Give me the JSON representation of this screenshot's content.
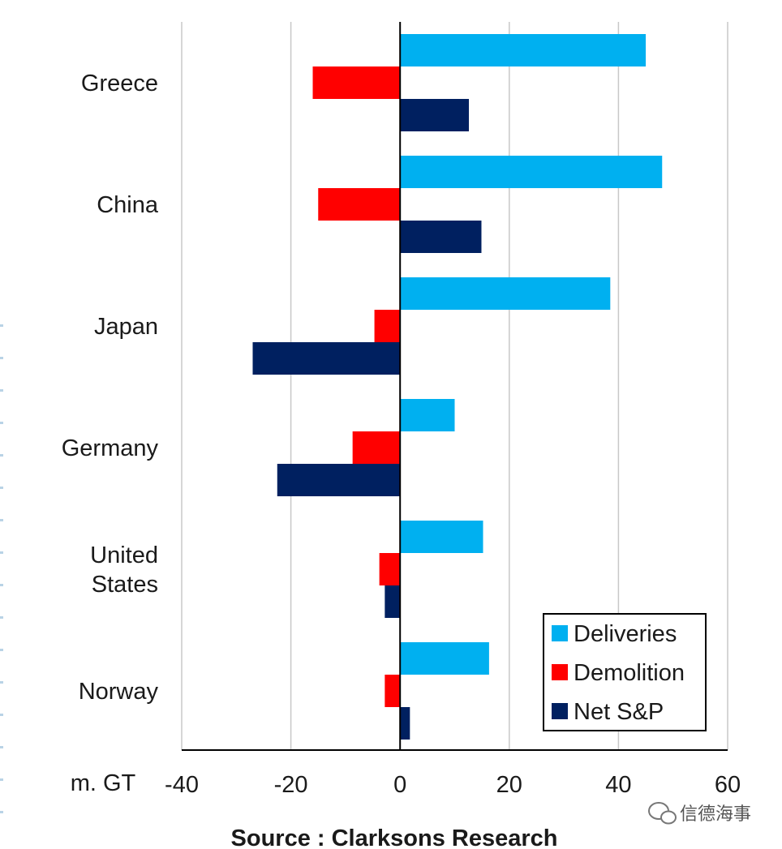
{
  "chart_data": {
    "type": "bar",
    "orientation": "horizontal",
    "categories": [
      "Greece",
      "China",
      "Japan",
      "Germany",
      "United States",
      "Norway"
    ],
    "category_lines": [
      [
        "Greece"
      ],
      [
        "China"
      ],
      [
        "Japan"
      ],
      [
        "Germany"
      ],
      [
        "United",
        "States"
      ],
      [
        "Norway"
      ]
    ],
    "series": [
      {
        "name": "Deliveries",
        "color": "#00b0f0",
        "values": [
          45,
          48,
          38.5,
          10,
          15.2,
          16.3
        ]
      },
      {
        "name": "Demolition",
        "color": "#ff0000",
        "values": [
          -16,
          -15,
          -4.7,
          -8.7,
          -3.8,
          -2.8
        ]
      },
      {
        "name": "Net S&P",
        "color": "#002060",
        "values": [
          12.6,
          14.9,
          -27,
          -22.5,
          -2.8,
          1.8
        ]
      }
    ],
    "xlim": [
      -40,
      60
    ],
    "xticks": [
      "-40",
      "-20",
      "0",
      "20",
      "40",
      "60"
    ],
    "xtick_values": [
      -40,
      -20,
      0,
      20,
      40,
      60
    ],
    "unit_label": "m. GT",
    "grid": "vertical",
    "legend_position": "bottom-right"
  },
  "source_label": "Source : Clarksons Research",
  "watermark": "信德海事"
}
